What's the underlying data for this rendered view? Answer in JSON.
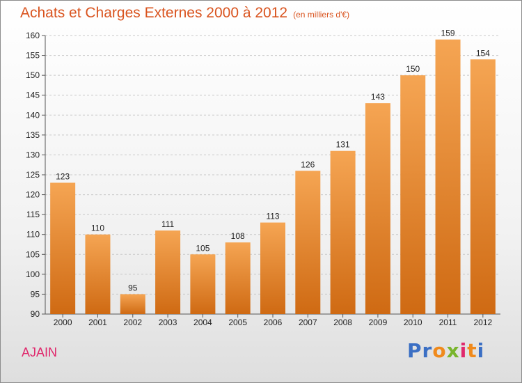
{
  "header": {
    "title": "Achats et Charges Externes 2000 à 2012",
    "unit": "(en milliers d'€)"
  },
  "footer": {
    "commune": "AJAIN",
    "brand": "Proxiti",
    "brand_colors": [
      "#3b6fc4",
      "#3b6fc4",
      "#f08a1c",
      "#79b52c",
      "#e0286c",
      "#f08a1c",
      "#3b6fc4"
    ]
  },
  "colors": {
    "title": "#d9531e",
    "commune": "#e0286c",
    "bar_top": "#f5a553",
    "bar_bottom": "#cf6a13",
    "grid": "#c8c8c8"
  },
  "chart_data": {
    "type": "bar",
    "title": "Achats et Charges Externes 2000 à 2012",
    "subtitle": "(en milliers d'€)",
    "xlabel": "",
    "ylabel": "",
    "categories": [
      "2000",
      "2001",
      "2002",
      "2003",
      "2004",
      "2005",
      "2006",
      "2007",
      "2008",
      "2009",
      "2010",
      "2011",
      "2012"
    ],
    "values": [
      123,
      110,
      95,
      111,
      105,
      108,
      113,
      126,
      131,
      143,
      150,
      159,
      154
    ],
    "ylim": [
      90,
      160
    ],
    "yticks": [
      90,
      95,
      100,
      105,
      110,
      115,
      120,
      125,
      130,
      135,
      140,
      145,
      150,
      155,
      160
    ],
    "grid": true,
    "legend": "none"
  }
}
